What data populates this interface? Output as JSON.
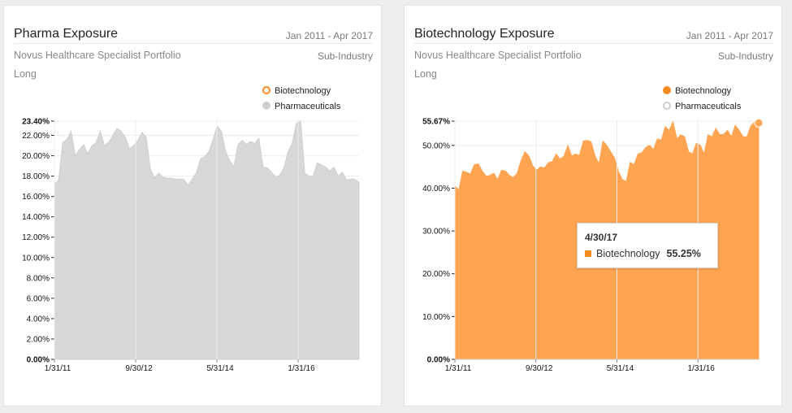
{
  "colors": {
    "biotechnology": "#f58a1f",
    "biotechnology_fill": "#ffa451",
    "pharmaceuticals": "#cfcfcf",
    "pharmaceuticals_fill": "#d7d7d7"
  },
  "cards": [
    {
      "title": "Pharma Exposure",
      "date_range": "Jan 2011 - Apr 2017",
      "portfolio": "Novus Healthcare Specialist Portfolio",
      "grouping": "Sub-Industry",
      "side": "Long",
      "legend": [
        {
          "label": "Biotechnology",
          "visible": false
        },
        {
          "label": "Pharmaceuticals",
          "visible": true
        }
      ]
    },
    {
      "title": "Biotechnology Exposure",
      "date_range": "Jan 2011 - Apr 2017",
      "portfolio": "Novus Healthcare Specialist Portfolio",
      "grouping": "Sub-Industry",
      "side": "Long",
      "legend": [
        {
          "label": "Biotechnology",
          "visible": true
        },
        {
          "label": "Pharmaceuticals",
          "visible": false
        }
      ],
      "tooltip": {
        "date": "4/30/17",
        "series": "Biotechnology",
        "value": "55.25%"
      }
    }
  ],
  "chart_data": [
    {
      "type": "area",
      "series": [
        {
          "name": "Pharmaceuticals",
          "values": [
            17.2,
            17.6,
            21.3,
            21.6,
            22.4,
            20.0,
            20.6,
            21.1,
            20.2,
            21.0,
            21.3,
            22.4,
            21.0,
            21.3,
            22.0,
            22.7,
            22.4,
            21.8,
            20.7,
            21.0,
            21.5,
            22.3,
            21.8,
            18.7,
            17.8,
            18.3,
            17.9,
            17.8,
            17.8,
            17.7,
            17.7,
            17.7,
            17.1,
            17.7,
            18.3,
            19.7,
            19.9,
            20.4,
            21.6,
            22.9,
            22.4,
            20.5,
            19.5,
            18.9,
            21.1,
            21.5,
            21.1,
            21.4,
            21.2,
            21.7,
            18.9,
            18.8,
            18.4,
            17.9,
            18.1,
            18.8,
            20.4,
            21.2,
            23.2,
            23.4,
            18.3,
            18.0,
            18.0,
            19.3,
            19.1,
            18.9,
            18.5,
            18.9,
            18.0,
            18.4,
            17.6,
            17.7,
            17.7,
            17.4
          ]
        }
      ],
      "x_tick_labels": [
        "1/31/11",
        "9/30/12",
        "5/31/14",
        "1/31/16"
      ],
      "y_tick_labels": [
        "0.00%",
        "2.00%",
        "4.00%",
        "6.00%",
        "8.00%",
        "10.00%",
        "12.00%",
        "14.00%",
        "16.00%",
        "18.00%",
        "20.00%",
        "22.00%",
        "23.40%"
      ],
      "ylim": [
        0,
        23.4
      ],
      "grid": true
    },
    {
      "type": "area",
      "series": [
        {
          "name": "Biotechnology",
          "values": [
            40.5,
            39.5,
            44.0,
            43.7,
            43.3,
            45.5,
            45.7,
            44.0,
            42.8,
            43.0,
            43.5,
            42.0,
            44.2,
            44.0,
            43.0,
            42.5,
            43.5,
            46.5,
            48.5,
            47.5,
            45.2,
            44.2,
            45.0,
            44.7,
            46.0,
            46.2,
            48.0,
            46.8,
            47.5,
            50.0,
            47.5,
            48.0,
            47.7,
            51.0,
            51.2,
            50.8,
            47.5,
            45.7,
            51.0,
            50.0,
            48.5,
            47.0,
            43.8,
            42.0,
            41.6,
            46.0,
            45.5,
            48.0,
            48.3,
            49.5,
            50.0,
            49.0,
            51.5,
            51.2,
            54.4,
            53.5,
            55.5,
            51.5,
            52.5,
            52.0,
            48.5,
            48.0,
            50.5,
            50.0,
            48.0,
            52.5,
            52.0,
            54.0,
            52.5,
            52.6,
            53.5,
            52.0,
            54.7,
            53.5,
            52.0,
            52.0,
            54.6,
            55.5,
            55.25
          ]
        }
      ],
      "x_tick_labels": [
        "1/31/11",
        "9/30/12",
        "5/31/14",
        "1/31/16"
      ],
      "y_tick_labels": [
        "0.00%",
        "10.00%",
        "20.00%",
        "30.00%",
        "40.00%",
        "50.00%",
        "55.67%"
      ],
      "ylim": [
        0,
        55.67
      ],
      "grid": true
    }
  ]
}
